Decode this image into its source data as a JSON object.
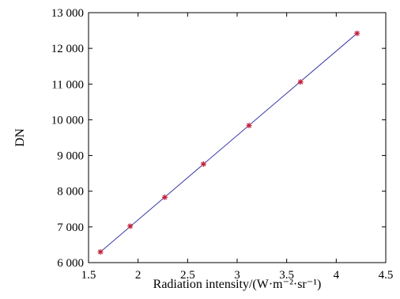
{
  "chart_data": {
    "type": "line",
    "title": "",
    "xlabel": "Radiation intensity/(W·m⁻²·sr⁻¹)",
    "ylabel": "DN",
    "xlim": [
      1.5,
      4.5
    ],
    "ylim": [
      6000,
      13000
    ],
    "x_ticks": [
      1.5,
      2,
      2.5,
      3,
      3.5,
      4,
      4.5
    ],
    "y_ticks": [
      6000,
      7000,
      8000,
      9000,
      10000,
      11000,
      12000,
      13000
    ],
    "x_tick_labels": [
      "1.5",
      "2",
      "2.5",
      "3",
      "3.5",
      "4",
      "4.5"
    ],
    "y_tick_labels": [
      "6 000",
      "7 000",
      "8 000",
      "9 000",
      "10 000",
      "11 000",
      "12 000",
      "13 000"
    ],
    "grid": false,
    "series": [
      {
        "kind": "points",
        "marker": "star",
        "color": "#c4203a",
        "x": [
          1.62,
          1.92,
          2.27,
          2.66,
          3.12,
          3.64,
          4.21
        ],
        "y": [
          6300,
          7020,
          7830,
          8760,
          9840,
          11060,
          12420
        ]
      },
      {
        "kind": "fit-line",
        "color": "#3a3aa8",
        "x": [
          1.62,
          4.21
        ],
        "y": [
          6300,
          12420
        ]
      }
    ]
  }
}
